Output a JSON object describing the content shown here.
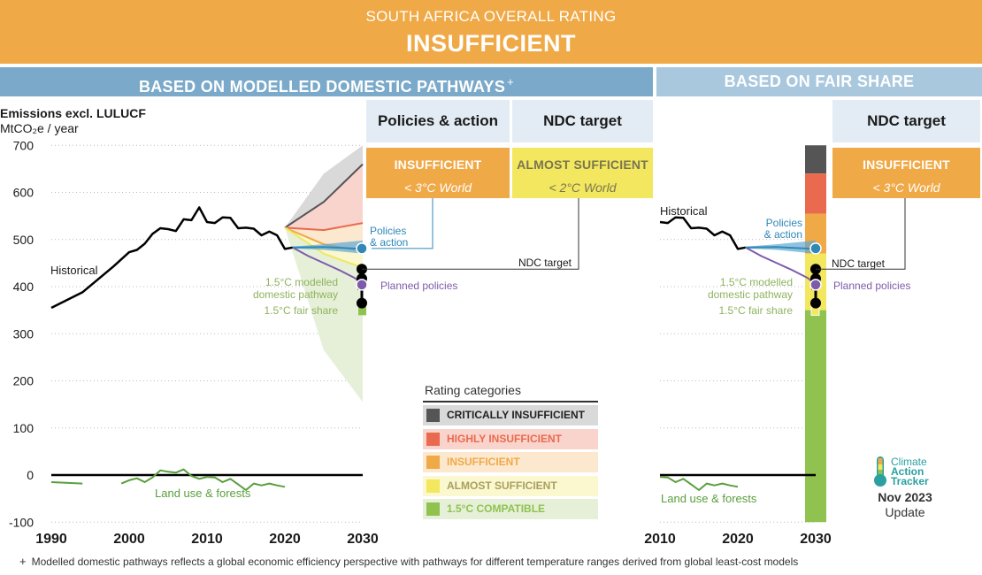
{
  "header": {
    "subtitle": "SOUTH AFRICA OVERALL RATING",
    "rating": "INSUFFICIENT"
  },
  "sections": {
    "left": "BASED ON MODELLED DOMESTIC PATHWAYS",
    "left_mark": "+",
    "right": "BASED ON FAIR SHARE"
  },
  "unit_label": {
    "line1": "Emissions excl. LULUCF",
    "line2": "MtCO₂e / year"
  },
  "columns": [
    {
      "heading": "Policies & action",
      "rating": "INSUFFICIENT",
      "world": "< 3°C World",
      "color": "#f0a947"
    },
    {
      "heading": "NDC target",
      "rating": "ALMOST SUFFICIENT",
      "world": "< 2°C World",
      "color": "#f2e75e"
    },
    {
      "heading": "NDC target",
      "rating": "INSUFFICIENT",
      "world": "< 3°C World",
      "color": "#f0a947"
    }
  ],
  "legend": {
    "title": "Rating categories",
    "items": [
      {
        "label": "CRITICALLY INSUFFICIENT",
        "color": "#555555",
        "bg": "#d9d9d9",
        "text_color": "#222222"
      },
      {
        "label": "HIGHLY INSUFFICIENT",
        "color": "#e96a4e",
        "bg": "#f9d4cc",
        "text_color": "#e96a4e"
      },
      {
        "label": "INSUFFICIENT",
        "color": "#f0a947",
        "bg": "#fce8cf",
        "text_color": "#f0a947"
      },
      {
        "label": "ALMOST SUFFICIENT",
        "color": "#f2e75e",
        "bg": "#fbf7cf",
        "text_color": "#a8a060"
      },
      {
        "label": "1.5°C COMPATIBLE",
        "color": "#8fc24f",
        "bg": "#e6f0d8",
        "text_color": "#8fc24f"
      }
    ]
  },
  "logo": {
    "line1": "Climate",
    "line2": "Action",
    "line3": "Tracker"
  },
  "update": {
    "date": "Nov 2023",
    "label": "Update"
  },
  "footnote": {
    "mark": "+",
    "text": "Modelled domestic pathways reflects a global economic efficiency perspective with pathways for different temperature ranges derived from global least-cost models"
  },
  "chart_data": [
    {
      "type": "line",
      "panel": "modelled domestic pathways",
      "xlim": [
        1990,
        2030
      ],
      "ylim": [
        -100,
        700
      ],
      "x_ticks": [
        1990,
        2000,
        2010,
        2020,
        2030
      ],
      "y_ticks": [
        -100,
        0,
        100,
        200,
        300,
        400,
        500,
        600,
        700
      ],
      "grid": "horizontal dotted",
      "series": [
        {
          "name": "Historical",
          "color": "#000000",
          "x": [
            1990,
            1994,
            1998,
            2000,
            2001,
            2002,
            2003,
            2004,
            2005,
            2006,
            2007,
            2008,
            2009,
            2010,
            2011,
            2012,
            2013,
            2014,
            2015,
            2016,
            2017,
            2018,
            2019,
            2020,
            2021
          ],
          "values": [
            355,
            388,
            443,
            473,
            478,
            491,
            512,
            524,
            522,
            518,
            543,
            541,
            568,
            537,
            535,
            547,
            546,
            524,
            525,
            523,
            509,
            517,
            509,
            480,
            483
          ]
        },
        {
          "name": "Land use & forests",
          "color": "#5a9e3e",
          "x": [
            1990,
            1994,
            null,
            1999,
            2000,
            2001,
            2002,
            2003,
            2004,
            2005,
            2006,
            2007,
            2008,
            2009,
            2010,
            2011,
            2012,
            2013,
            2014,
            2015,
            2016,
            2017,
            2018,
            2019,
            2020
          ],
          "values": [
            -15,
            -18,
            null,
            -18,
            -11,
            -7,
            -15,
            -5,
            10,
            7,
            5,
            12,
            -2,
            -8,
            -4,
            -5,
            -15,
            -8,
            -20,
            -32,
            -18,
            -22,
            -18,
            -22,
            -25
          ]
        },
        {
          "name": "Planned policies",
          "color": "#7d5bab",
          "x": [
            2021,
            2023,
            2025,
            2027,
            2029,
            2030
          ],
          "values": [
            483,
            465,
            450,
            435,
            418,
            405
          ]
        },
        {
          "name": "Policies & action",
          "color": "#2f88b8",
          "x": [
            2021,
            2025,
            2030
          ],
          "values": [
            483,
            484,
            480
          ]
        }
      ],
      "ranges": [
        {
          "category": "CRITICALLY INSUFFICIENT",
          "x": [
            2020,
            2025,
            2030
          ],
          "low": [
            525,
            580,
            660
          ],
          "high": [
            525,
            640,
            700
          ]
        },
        {
          "category": "HIGHLY INSUFFICIENT",
          "x": [
            2020,
            2025,
            2030
          ],
          "low": [
            525,
            520,
            535
          ],
          "high": [
            525,
            580,
            660
          ]
        },
        {
          "category": "INSUFFICIENT",
          "x": [
            2020,
            2025,
            2030
          ],
          "low": [
            525,
            490,
            475
          ],
          "high": [
            525,
            520,
            535
          ]
        },
        {
          "category": "ALMOST SUFFICIENT",
          "x": [
            2020,
            2025,
            2030
          ],
          "low": [
            525,
            470,
            440
          ],
          "high": [
            525,
            490,
            475
          ]
        },
        {
          "category": "1.5°C COMPATIBLE",
          "x": [
            2020,
            2025,
            2030
          ],
          "low": [
            525,
            265,
            155
          ],
          "high": [
            525,
            470,
            440
          ]
        }
      ],
      "end_markers_2030": [
        {
          "label": "NDC target",
          "value": [
            365,
            437
          ]
        },
        {
          "label": "Policies & action",
          "value": 481
        },
        {
          "label": "Planned policies",
          "value": 404
        },
        {
          "label": "1.5°C modelled domestic pathway",
          "value": 387
        },
        {
          "label": "1.5°C fair share",
          "value": 350
        }
      ],
      "annotations": [
        "Historical",
        "Land use & forests",
        "Policies",
        "& action",
        "1.5°C modelled",
        "domestic pathway",
        "1.5°C fair share",
        "Planned policies",
        "NDC target"
      ]
    },
    {
      "type": "line",
      "panel": "fair share",
      "xlim": [
        2010,
        2030
      ],
      "ylim": [
        -100,
        700
      ],
      "x_ticks": [
        2010,
        2020,
        2030
      ],
      "series": [
        {
          "name": "Historical",
          "color": "#000000",
          "x": [
            2010,
            2011,
            2012,
            2013,
            2014,
            2015,
            2016,
            2017,
            2018,
            2019,
            2020,
            2021
          ],
          "values": [
            537,
            535,
            547,
            546,
            524,
            525,
            523,
            509,
            517,
            509,
            480,
            483
          ]
        },
        {
          "name": "Land use & forests",
          "color": "#5a9e3e",
          "x": [
            2010,
            2011,
            2012,
            2013,
            2014,
            2015,
            2016,
            2017,
            2018,
            2019,
            2020
          ],
          "values": [
            -4,
            -5,
            -15,
            -8,
            -20,
            -32,
            -18,
            -22,
            -18,
            -22,
            -25
          ]
        },
        {
          "name": "Planned policies",
          "color": "#7d5bab",
          "x": [
            2021,
            2023,
            2025,
            2027,
            2029,
            2030
          ],
          "values": [
            483,
            465,
            450,
            435,
            418,
            405
          ]
        },
        {
          "name": "Policies & action",
          "color": "#2f88b8",
          "x": [
            2021,
            2025,
            2030
          ],
          "values": [
            483,
            484,
            480
          ]
        }
      ],
      "fair_share_bar_2030": [
        {
          "category": "CRITICALLY INSUFFICIENT",
          "low": 640,
          "high": 700
        },
        {
          "category": "HIGHLY INSUFFICIENT",
          "low": 555,
          "high": 640
        },
        {
          "category": "INSUFFICIENT",
          "low": 470,
          "high": 555
        },
        {
          "category": "ALMOST SUFFICIENT",
          "low": 350,
          "high": 470
        },
        {
          "category": "1.5°C COMPATIBLE",
          "low": -100,
          "high": 350
        }
      ],
      "annotations": [
        "Historical",
        "Land use & forests",
        "Policies",
        "& action",
        "1.5°C modelled",
        "domestic pathway",
        "1.5°C fair share",
        "Planned policies",
        "NDC target"
      ]
    }
  ]
}
